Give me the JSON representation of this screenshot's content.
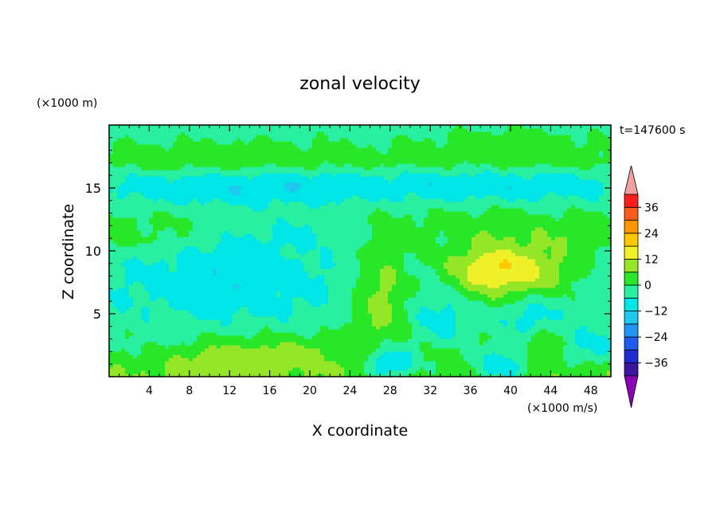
{
  "chart_data": {
    "type": "heatmap",
    "title": "zonal velocity",
    "xlabel": "X coordinate",
    "ylabel": "Z coordinate",
    "y_unit": "(×1000 m)",
    "colorbar_unit": "(×1000 m/s)",
    "time_label": "t=147600 s",
    "xlim": [
      0,
      50
    ],
    "ylim": [
      0,
      20
    ],
    "x_ticks": [
      4,
      8,
      12,
      16,
      20,
      24,
      28,
      32,
      36,
      40,
      44,
      48
    ],
    "y_ticks": [
      5,
      10,
      15
    ],
    "colorbar": {
      "levels": [
        -42,
        -36,
        -30,
        -24,
        -18,
        -12,
        -6,
        0,
        6,
        12,
        18,
        24,
        30,
        36,
        42
      ],
      "tick_values": [
        36,
        24,
        12,
        0,
        -12,
        -24,
        -36
      ],
      "tick_labels": [
        "36",
        "24",
        "12",
        "0",
        "−12",
        "−24",
        "−36"
      ],
      "colors": [
        "#8c00b4",
        "#3c14a0",
        "#1e2bd2",
        "#1e5cf0",
        "#1e96f5",
        "#1ec8f0",
        "#00e6e6",
        "#28f0a0",
        "#28e628",
        "#96e628",
        "#f0f028",
        "#ffc800",
        "#ff9600",
        "#ff5a1e",
        "#ff1e1e",
        "#f5a0a0"
      ],
      "extend": "both"
    },
    "bands": [
      {
        "z": 19.6,
        "value": -3
      },
      {
        "z": 18.0,
        "value": 1
      },
      {
        "z": 17.2,
        "value": 3
      },
      {
        "z": 16.0,
        "value": -4
      },
      {
        "z": 15.0,
        "value": -7
      },
      {
        "z": 13.8,
        "value": -3
      },
      {
        "z": 12.5,
        "value": 2
      },
      {
        "z": 11.0,
        "value": 3
      },
      {
        "z": 9.0,
        "value": -5
      },
      {
        "z": 7.0,
        "value": -6
      },
      {
        "z": 5.0,
        "value": -4
      },
      {
        "z": 3.5,
        "value": -1
      },
      {
        "z": 2.0,
        "value": 2
      },
      {
        "z": 0.5,
        "value": 5
      }
    ],
    "blobs": [
      {
        "x": 41,
        "z": 8.5,
        "value": 12,
        "rx": 6,
        "rz": 2.5
      },
      {
        "x": 36,
        "z": 9,
        "value": 6,
        "rx": 5,
        "rz": 3
      },
      {
        "x": 27,
        "z": 6,
        "value": 8,
        "rx": 2.8,
        "rz": 5
      },
      {
        "x": 33.5,
        "z": 5.5,
        "value": -10,
        "rx": 3,
        "rz": 4.5
      },
      {
        "x": 12,
        "z": 8,
        "value": -10,
        "rx": 8,
        "rz": 3.5
      },
      {
        "x": 20,
        "z": 11.5,
        "value": -5,
        "rx": 7,
        "rz": 2
      },
      {
        "x": 42,
        "z": 5,
        "value": -12,
        "rx": 2.5,
        "rz": 1.8
      },
      {
        "x": 43,
        "z": 2.5,
        "value": 7,
        "rx": 2,
        "rz": 1.5
      },
      {
        "x": 28,
        "z": 1.2,
        "value": -14,
        "rx": 2.5,
        "rz": 1.4
      },
      {
        "x": 34,
        "z": 1.5,
        "value": 8,
        "rx": 3.5,
        "rz": 1.5
      },
      {
        "x": 39,
        "z": 1.0,
        "value": -10,
        "rx": 3,
        "rz": 1.5
      },
      {
        "x": 11,
        "z": 1.2,
        "value": 10,
        "rx": 7,
        "rz": 1.8
      },
      {
        "x": 19,
        "z": 1.5,
        "value": 7,
        "rx": 5,
        "rz": 1.5
      },
      {
        "x": 48,
        "z": 2.5,
        "value": -8,
        "rx": 3,
        "rz": 1.5
      },
      {
        "x": 15,
        "z": 15,
        "value": -11,
        "rx": 12,
        "rz": 1.2
      },
      {
        "x": 38,
        "z": 15.2,
        "value": -10,
        "rx": 12,
        "rz": 1.0
      },
      {
        "x": 40,
        "z": 18.5,
        "value": 4,
        "rx": 8,
        "rz": 1.2
      },
      {
        "x": 12,
        "z": 17.5,
        "value": 4,
        "rx": 10,
        "rz": 1.0
      },
      {
        "x": 5,
        "z": 3.0,
        "value": -3,
        "rx": 5,
        "rz": 1.5
      }
    ]
  }
}
